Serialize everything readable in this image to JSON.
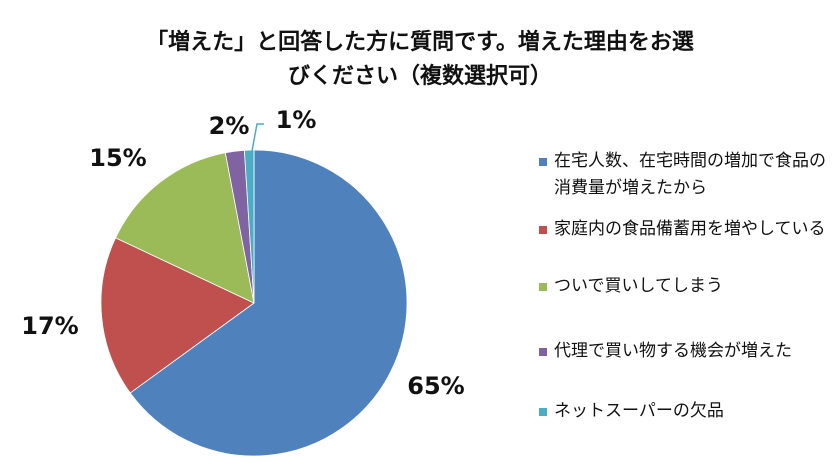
{
  "chart_data": {
    "type": "pie",
    "title_lines": [
      "「増えた」と回答した方に質問です。増えた理由をお選",
      "びください（複数選択可）"
    ],
    "slices": [
      {
        "label": "在宅人数、在宅時間の増加で食品の消費量が増えたから",
        "value": 65,
        "value_label": "65%",
        "color": "#4f81bd"
      },
      {
        "label": "家庭内の食品備蓄用を増やしている",
        "value": 17,
        "value_label": "17%",
        "color": "#c0504d"
      },
      {
        "label": "ついで買いしてしまう",
        "value": 15,
        "value_label": "15%",
        "color": "#9bbb59"
      },
      {
        "label": "代理で買い物する機会が増えた",
        "value": 2,
        "value_label": "2%",
        "color": "#8064a2"
      },
      {
        "label": "ネットスーパーの欠品",
        "value": 1,
        "value_label": "1%",
        "color": "#4bacc6"
      }
    ],
    "start": "12 o'clock",
    "direction": "clockwise",
    "legend_position": "right"
  }
}
